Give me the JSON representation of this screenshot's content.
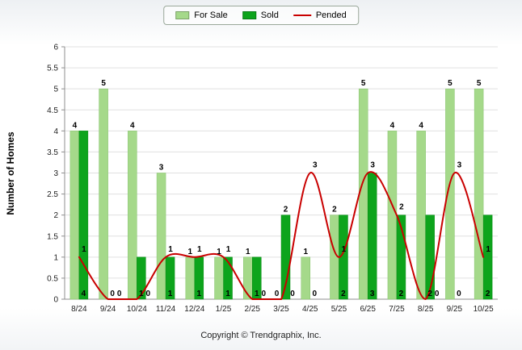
{
  "chart_data": {
    "type": "bar",
    "title": "",
    "categories": [
      "8/24",
      "9/24",
      "10/24",
      "11/24",
      "12/24",
      "1/25",
      "2/25",
      "3/25",
      "4/25",
      "5/25",
      "6/25",
      "7/25",
      "8/25",
      "9/25",
      "10/25"
    ],
    "series": [
      {
        "name": "For Sale",
        "type": "bar",
        "color": "#a5d98a",
        "values": [
          4,
          5,
          4,
          3,
          1,
          1,
          1,
          0,
          1,
          2,
          5,
          4,
          4,
          5,
          5
        ]
      },
      {
        "name": "Sold",
        "type": "bar",
        "color": "#0da41c",
        "values": [
          4,
          0,
          1,
          1,
          1,
          1,
          1,
          2,
          0,
          2,
          3,
          2,
          2,
          0,
          2
        ]
      },
      {
        "name": "Pended",
        "type": "line",
        "color": "#c90000",
        "values": [
          1,
          0,
          0,
          1,
          1,
          1,
          0,
          0,
          3,
          1,
          3,
          2,
          0,
          3,
          1
        ]
      }
    ],
    "xlabel": "",
    "ylabel": "Number of Homes",
    "ylim": [
      0,
      6
    ],
    "ytick_step": 0.5,
    "grid": true,
    "legend_position": "top"
  },
  "footer": {
    "copyright": "Copyright © Trendgraphix, Inc."
  }
}
